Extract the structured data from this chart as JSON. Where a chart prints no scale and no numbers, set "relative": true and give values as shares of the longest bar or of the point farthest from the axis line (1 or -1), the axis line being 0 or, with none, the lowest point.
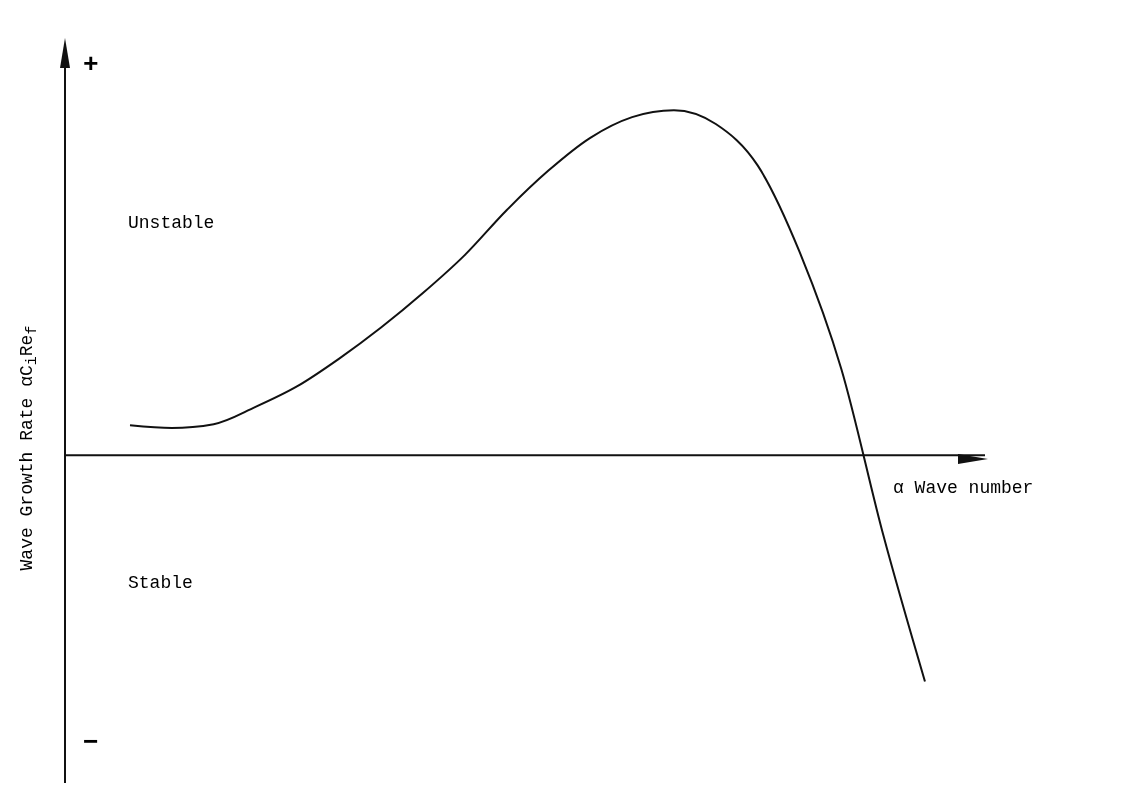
{
  "chart_data": {
    "type": "line",
    "relative": true,
    "xlabel": "α Wave number",
    "ylabel": "Wave Growth Rate  αC$_{i}$Re$_{f}$",
    "categories": [
      null,
      null,
      null,
      null,
      null,
      null,
      null,
      null,
      null,
      null,
      null,
      null,
      null,
      null,
      null,
      null,
      null,
      null,
      null,
      null
    ],
    "series": [
      {
        "color": "#111111",
        "values": [
          0.087,
          0.079,
          0.09,
          0.14,
          0.2,
          0.28,
          0.37,
          0.47,
          0.58,
          0.71,
          0.825,
          0.92,
          0.98,
          1.0,
          0.96,
          0.84,
          0.59,
          0.25,
          -0.23,
          -0.656
        ]
      }
    ],
    "marker": "none",
    "line_style": "solid",
    "annotations": [
      "+",
      "Unstable",
      "Stable",
      "−"
    ]
  }
}
